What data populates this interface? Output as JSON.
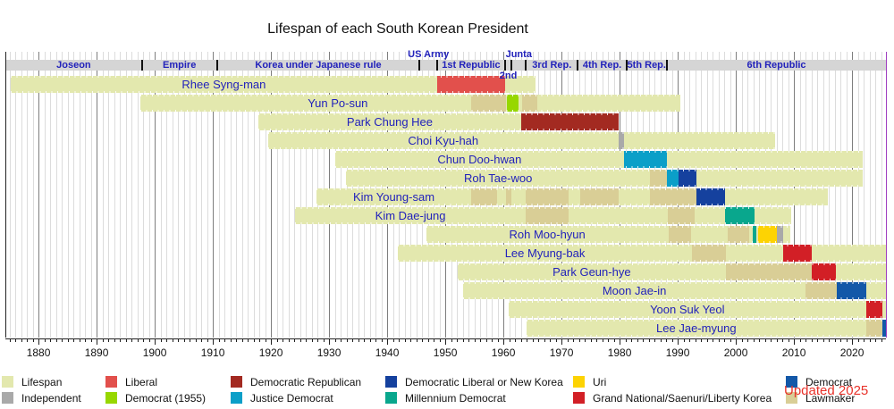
{
  "title": "Lifespan of each South Korean President",
  "updated_note": "Updated 2025",
  "axis": {
    "start_year": 1874.3,
    "end_year": 2025.9,
    "decade_labels": [
      1880,
      1890,
      1900,
      1910,
      1920,
      1930,
      1940,
      1950,
      1960,
      1970,
      1980,
      1990,
      2000,
      2010,
      2020
    ]
  },
  "colors": {
    "lifespan": "#e3e8ae",
    "independent": "#a9a9a9",
    "liberal": "#e2504c",
    "democrat_1955": "#97d700",
    "democratic_republican": "#a32a21",
    "justice_democrat": "#0b9fc8",
    "democratic_liberal_or_new_korea": "#15419e",
    "millennium_democrat": "#09a78d",
    "uri": "#fdd303",
    "grand_national": "#d21f26",
    "democrat": "#1358a8",
    "lawmaker": "#d9ce96",
    "era_band": "#d5d5d5",
    "era_text": "#2222bb",
    "name_text": "#2222bb",
    "updated_text": "#e8322a",
    "left_edge_line": "#222222",
    "right_edge_line": "#a040c0"
  },
  "eras": {
    "band": [
      {
        "label": "Joseon",
        "start": 1874.3,
        "end": 1897.8
      },
      {
        "label": "Empire",
        "start": 1897.8,
        "end": 1910.7
      },
      {
        "label": "Korea under Japanese rule",
        "start": 1910.7,
        "end": 1945.6
      },
      {
        "label": "1st Republic",
        "start": 1948.6,
        "end": 1960.3
      },
      {
        "label": "3rd Rep.",
        "start": 1963.9,
        "end": 1972.8
      },
      {
        "label": "4th Rep.",
        "start": 1972.8,
        "end": 1981.2
      },
      {
        "label": "5th Rep.",
        "start": 1981.2,
        "end": 1988.1
      },
      {
        "label": "6th Republic",
        "start": 1988.1,
        "end": 2025.9
      }
    ],
    "above": [
      {
        "label": "US Army",
        "start": 1945.6,
        "end": 1948.6
      },
      {
        "label": "Junta",
        "start": 1961.4,
        "end": 1963.9
      }
    ],
    "below": [
      {
        "label": "2nd",
        "start": 1960.3,
        "end": 1961.4
      }
    ],
    "separators": [
      1897.8,
      1910.7,
      1945.6,
      1948.6,
      1960.3,
      1961.4,
      1963.9,
      1972.8,
      1981.2,
      1988.1
    ]
  },
  "chart_data": {
    "type": "timeline",
    "x_unit": "year",
    "presidents": [
      {
        "name": "Rhee Syng-man",
        "start": 1875.2,
        "end": 1965.6,
        "segments": [
          {
            "party": "Liberal",
            "color": "liberal",
            "start": 1948.6,
            "end": 1960.3
          }
        ]
      },
      {
        "name": "Yun Po-sun",
        "start": 1897.6,
        "end": 1990.5,
        "label_center_year": 1931.5,
        "segments": [
          {
            "party": "Lawmaker",
            "color": "lawmaker",
            "start": 1954.4,
            "end": 1960.4
          },
          {
            "party": "Democrat (1955)",
            "color": "democrat_1955",
            "start": 1960.6,
            "end": 1962.6
          },
          {
            "party": "Lawmaker",
            "color": "lawmaker",
            "start": 1963.2,
            "end": 1965.8
          }
        ]
      },
      {
        "name": "Park Chung Hee",
        "start": 1917.9,
        "end": 1979.8,
        "segments": [
          {
            "party": "Democratic Republican",
            "color": "democratic_republican",
            "start": 1963.0,
            "end": 1979.8
          }
        ]
      },
      {
        "name": "Choi Kyu-hah",
        "start": 1919.5,
        "end": 2006.8,
        "segments": [
          {
            "party": "Independent",
            "color": "independent",
            "start": 1979.8,
            "end": 1980.7
          }
        ]
      },
      {
        "name": "Chun Doo-hwan",
        "start": 1931.1,
        "end": 2021.9,
        "segments": [
          {
            "party": "Justice Democrat",
            "color": "justice_democrat",
            "start": 1980.7,
            "end": 1988.1
          }
        ]
      },
      {
        "name": "Roh Tae-woo",
        "start": 1932.9,
        "end": 2021.8,
        "segments": [
          {
            "party": "Lawmaker",
            "color": "lawmaker",
            "start": 1985.3,
            "end": 1988.1
          },
          {
            "party": "Justice Democrat",
            "color": "justice_democrat",
            "start": 1988.1,
            "end": 1990.1
          },
          {
            "party": "Democratic Liberal or New Korea",
            "color": "democratic_liberal_or_new_korea",
            "start": 1990.1,
            "end": 1993.2
          }
        ]
      },
      {
        "name": "Kim Young-sam",
        "start": 1927.9,
        "end": 2015.9,
        "segments": [
          {
            "party": "Lawmaker",
            "color": "lawmaker",
            "start": 1954.4,
            "end": 1958.9
          },
          {
            "party": "Lawmaker",
            "color": "lawmaker",
            "start": 1960.5,
            "end": 1961.4
          },
          {
            "party": "Lawmaker",
            "color": "lawmaker",
            "start": 1963.9,
            "end": 1971.3
          },
          {
            "party": "Lawmaker",
            "color": "lawmaker",
            "start": 1973.2,
            "end": 1979.9
          },
          {
            "party": "Lawmaker",
            "color": "lawmaker",
            "start": 1985.3,
            "end": 1993.2
          },
          {
            "party": "Democratic Liberal or New Korea",
            "color": "democratic_liberal_or_new_korea",
            "start": 1993.2,
            "end": 1998.2
          }
        ]
      },
      {
        "name": "Kim Dae-jung",
        "start": 1924.1,
        "end": 2009.6,
        "segments": [
          {
            "party": "Lawmaker",
            "color": "lawmaker",
            "start": 1963.9,
            "end": 1971.3
          },
          {
            "party": "Lawmaker",
            "color": "lawmaker",
            "start": 1988.3,
            "end": 1992.9
          },
          {
            "party": "Millennium Democrat",
            "color": "millennium_democrat",
            "start": 1998.2,
            "end": 2003.2
          }
        ]
      },
      {
        "name": "Roh Moo-hyun",
        "start": 1946.7,
        "end": 2009.4,
        "segments": [
          {
            "party": "Lawmaker",
            "color": "lawmaker",
            "start": 1988.4,
            "end": 1992.3
          },
          {
            "party": "Lawmaker",
            "color": "lawmaker",
            "start": 1998.6,
            "end": 2002.3
          },
          {
            "party": "Millennium Democrat",
            "color": "millennium_democrat",
            "start": 2002.9,
            "end": 2003.5
          },
          {
            "party": "Uri",
            "color": "uri",
            "start": 2003.8,
            "end": 2007.0
          },
          {
            "party": "Independent",
            "color": "independent",
            "start": 2007.0,
            "end": 2008.1
          }
        ]
      },
      {
        "name": "Lee Myung-bak",
        "start": 1941.9,
        "end": 2025.8,
        "segments": [
          {
            "party": "Lawmaker",
            "color": "lawmaker",
            "start": 1992.4,
            "end": 1998.3
          },
          {
            "party": "Grand National/Saenuri/Liberty Korea",
            "color": "grand_national",
            "start": 2008.1,
            "end": 2013.1
          }
        ]
      },
      {
        "name": "Park Geun-hye",
        "start": 1952.1,
        "end": 2025.8,
        "segments": [
          {
            "party": "Lawmaker",
            "color": "lawmaker",
            "start": 1998.3,
            "end": 2013.1
          },
          {
            "party": "Grand National/Saenuri/Liberty Korea",
            "color": "grand_national",
            "start": 2013.1,
            "end": 2017.2
          }
        ]
      },
      {
        "name": "Moon Jae-in",
        "start": 1953.1,
        "end": 2025.8,
        "segments": [
          {
            "party": "Lawmaker",
            "color": "lawmaker",
            "start": 2012.0,
            "end": 2017.4
          },
          {
            "party": "Democrat",
            "color": "democrat",
            "start": 2017.4,
            "end": 2022.4
          }
        ]
      },
      {
        "name": "Yoon Suk Yeol",
        "start": 1960.9,
        "end": 2025.8,
        "segments": [
          {
            "party": "Grand National/Saenuri/Liberty Korea",
            "color": "grand_national",
            "start": 2022.4,
            "end": 2025.3
          }
        ]
      },
      {
        "name": "Lee Jae-myung",
        "start": 1964.0,
        "end": 2025.9,
        "segments": [
          {
            "party": "Lawmaker",
            "color": "lawmaker",
            "start": 2022.4,
            "end": 2025.3
          },
          {
            "party": "Democrat",
            "color": "democrat",
            "start": 2025.3,
            "end": 2025.9
          }
        ]
      }
    ]
  },
  "legend": {
    "rows": [
      [
        {
          "label": "Lifespan",
          "color": "lifespan"
        },
        {
          "label": "Liberal",
          "color": "liberal"
        },
        {
          "label": "Democratic Republican",
          "color": "democratic_republican"
        },
        {
          "label": "Democratic Liberal or New Korea",
          "color": "democratic_liberal_or_new_korea"
        },
        {
          "label": "Uri",
          "color": "uri"
        },
        {
          "label": "Democrat",
          "color": "democrat"
        }
      ],
      [
        {
          "label": "Independent",
          "color": "independent"
        },
        {
          "label": "Democrat (1955)",
          "color": "democrat_1955"
        },
        {
          "label": "Justice Democrat",
          "color": "justice_democrat"
        },
        {
          "label": "Millennium Democrat",
          "color": "millennium_democrat"
        },
        {
          "label": "Grand National/Saenuri/Liberty Korea",
          "color": "grand_national"
        },
        {
          "label": "Lawmaker",
          "color": "lawmaker"
        }
      ]
    ]
  }
}
